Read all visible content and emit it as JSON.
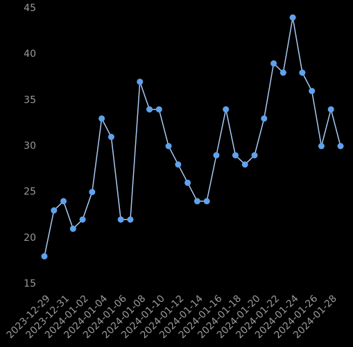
{
  "chart_data": {
    "type": "line",
    "x": [
      "2023-12-29",
      "2023-12-30",
      "2023-12-31",
      "2024-01-01",
      "2024-01-02",
      "2024-01-03",
      "2024-01-04",
      "2024-01-05",
      "2024-01-06",
      "2024-01-07",
      "2024-01-08",
      "2024-01-09",
      "2024-01-10",
      "2024-01-11",
      "2024-01-12",
      "2024-01-13",
      "2024-01-14",
      "2024-01-15",
      "2024-01-16",
      "2024-01-17",
      "2024-01-18",
      "2024-01-19",
      "2024-01-20",
      "2024-01-21",
      "2024-01-22",
      "2024-01-23",
      "2024-01-24",
      "2024-01-25",
      "2024-01-26",
      "2024-01-27",
      "2024-01-28",
      "2024-01-29"
    ],
    "values": [
      18,
      23,
      24,
      21,
      22,
      25,
      33,
      31,
      22,
      22,
      37,
      34,
      34,
      30,
      28,
      26,
      24,
      24,
      29,
      34,
      29,
      28,
      29,
      33,
      39,
      38,
      44,
      38,
      36,
      30,
      34,
      30
    ],
    "color": "#5fa2ee",
    "line_color": "#a9cbf4",
    "xticks": [
      "2023-12-29",
      "2023-12-31",
      "2024-01-02",
      "2024-01-04",
      "2024-01-06",
      "2024-01-08",
      "2024-01-10",
      "2024-01-12",
      "2024-01-14",
      "2024-01-16",
      "2024-01-18",
      "2024-01-20",
      "2024-01-22",
      "2024-01-24",
      "2024-01-26",
      "2024-01-28"
    ],
    "ylim": [
      15,
      45
    ],
    "yticks": [
      15,
      20,
      25,
      30,
      35,
      40,
      45
    ]
  }
}
